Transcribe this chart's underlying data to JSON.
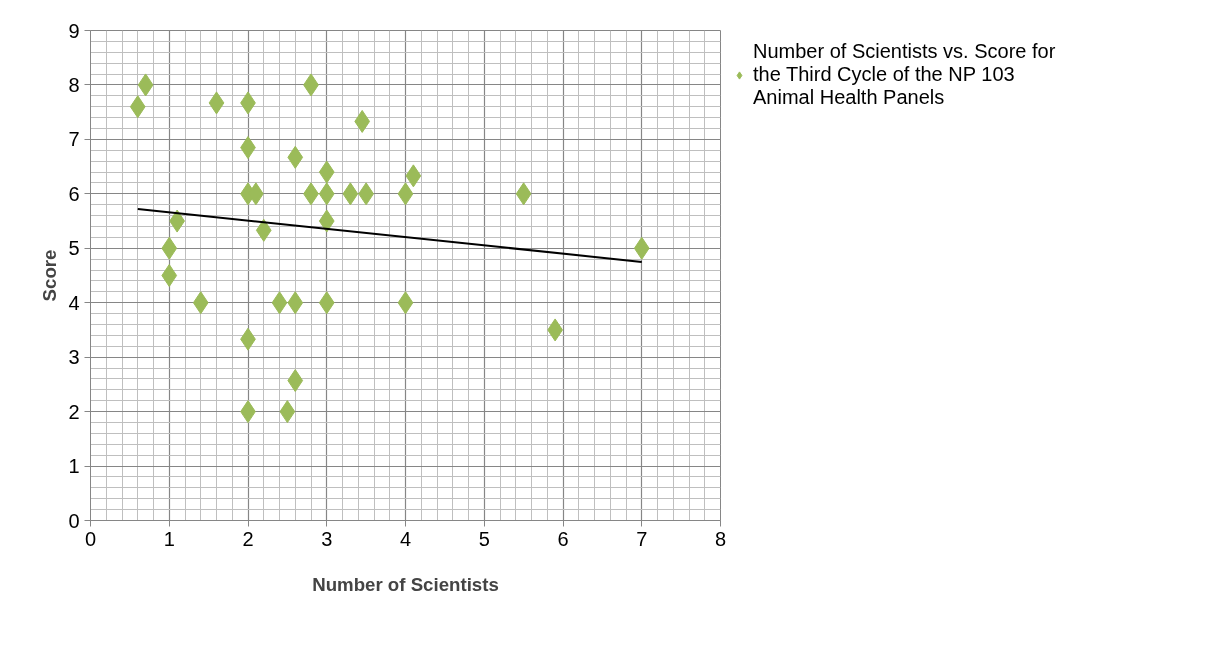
{
  "chart_data": {
    "type": "scatter",
    "xlabel": "Number of Scientists",
    "ylabel": "Score",
    "xlim": [
      0,
      8
    ],
    "ylim": [
      0,
      9
    ],
    "xticks": [
      0,
      1,
      2,
      3,
      4,
      5,
      6,
      7,
      8
    ],
    "yticks": [
      0,
      1,
      2,
      3,
      4,
      5,
      6,
      7,
      8,
      9
    ],
    "grid": true,
    "legend": "right",
    "marker": "diamond",
    "series": [
      {
        "name": "Number of Scientists vs. Score for the Third Cycle of the NP 103 Animal Health Panels",
        "color": "#9bbb59",
        "x": [
          0.6,
          0.7,
          1.6,
          2,
          2,
          2.8,
          3.45,
          2.6,
          3,
          2,
          2.1,
          2.8,
          3,
          3.3,
          3.5,
          4,
          4.1,
          5.5,
          3,
          1.1,
          2.2,
          1,
          7,
          1,
          1.4,
          2.4,
          2.6,
          3,
          4,
          2,
          5.9,
          2.6,
          2,
          2.5
        ],
        "values": [
          7.6,
          8,
          7.67,
          7.67,
          6.85,
          8,
          7.33,
          6.67,
          6.4,
          6,
          6,
          6,
          6,
          6,
          6,
          6,
          6.33,
          6,
          5.5,
          5.5,
          5.33,
          5,
          5,
          4.5,
          4,
          4,
          4,
          4,
          4,
          3.33,
          3.5,
          2.57,
          2,
          2
        ]
      },
      {
        "color": "#000000",
        "type": "line",
        "marker": "none",
        "line_style": "solid",
        "x": [
          0.6,
          7
        ],
        "values": [
          5.72,
          4.75
        ]
      }
    ]
  }
}
